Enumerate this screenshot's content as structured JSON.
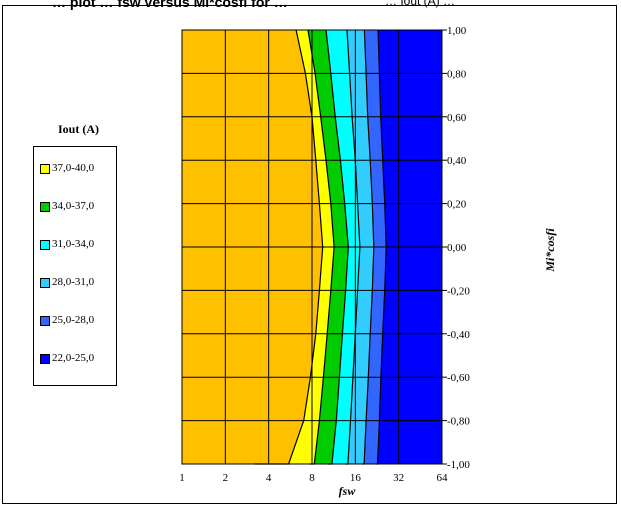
{
  "title": {
    "main": "… plot … fsw versus Mi*cosfi for …",
    "tail": "… Iout (A) …"
  },
  "chart_data": {
    "type": "heatmap",
    "xlabel": "fsw",
    "ylabel": "Mi*cosfi",
    "x_scale": "log2",
    "x": [
      1,
      2,
      4,
      8,
      16,
      32,
      64
    ],
    "x_tick_labels": [
      "1",
      "2",
      "4",
      "8",
      "16",
      "32",
      "64"
    ],
    "y": [
      -1.0,
      -0.8,
      -0.6,
      -0.4,
      -0.2,
      0.0,
      0.2,
      0.4,
      0.6,
      0.8,
      1.0
    ],
    "y_tick_labels": [
      "-1,00",
      "-0,80",
      "-0,60",
      "-0,40",
      "-0,20",
      "0,00",
      "0,20",
      "0,40",
      "0,60",
      "0,80",
      "1,00"
    ],
    "ylim": [
      -1.0,
      1.0
    ],
    "grid": true,
    "legend_title": "Iout (A)",
    "legend_position": "left",
    "bands": [
      {
        "label": "37,0-40,0",
        "color": "#ffff00"
      },
      {
        "label": "34,0-37,0",
        "color": "#00cc00"
      },
      {
        "label": "31,0-34,0",
        "color": "#00ffff"
      },
      {
        "label": "28,0-31,0",
        "color": "#33ccff"
      },
      {
        "label": "25,0-28,0",
        "color": "#3366ff"
      },
      {
        "label": "22,0-25,0",
        "color": "#0000ff"
      }
    ],
    "region_colors": {
      "above_40": "#ffc000",
      "below_22": "#0000ff"
    },
    "contour_levels": [
      40,
      37,
      34,
      31,
      28,
      25
    ],
    "contours_fsw": [
      {
        "level": 40,
        "fsw": [
          6.2,
          7.2,
          8.0,
          8.5,
          9.0,
          9.5,
          9.0,
          8.5,
          7.8,
          7.0,
          5.5,
          3.2
        ]
      },
      {
        "level": 37,
        "fsw": [
          7.5,
          8.4,
          9.2,
          10.0,
          10.8,
          11.4,
          10.8,
          10.2,
          9.6,
          9.0,
          8.3,
          7.7
        ]
      },
      {
        "level": 34,
        "fsw": [
          10.0,
          10.8,
          11.6,
          12.6,
          13.5,
          14.3,
          13.7,
          13.0,
          12.4,
          11.8,
          11.0,
          10.3
        ]
      },
      {
        "level": 31,
        "fsw": [
          14.0,
          14.6,
          15.2,
          16.0,
          16.6,
          17.2,
          16.6,
          16.0,
          15.4,
          14.8,
          14.2,
          13.6
        ]
      },
      {
        "level": 28,
        "fsw": [
          18.5,
          19.0,
          19.5,
          20.3,
          21.0,
          21.5,
          21.0,
          20.3,
          19.7,
          19.0,
          18.4,
          17.8
        ]
      },
      {
        "level": 25,
        "fsw": [
          23.0,
          23.5,
          24.0,
          24.8,
          25.6,
          26.2,
          25.6,
          24.8,
          24.1,
          23.5,
          22.8,
          22.2
        ]
      }
    ],
    "contour_y": [
      1.0,
      0.8,
      0.6,
      0.4,
      0.2,
      0.0,
      -0.2,
      -0.4,
      -0.6,
      -0.8,
      -1.0,
      -1.0
    ]
  }
}
